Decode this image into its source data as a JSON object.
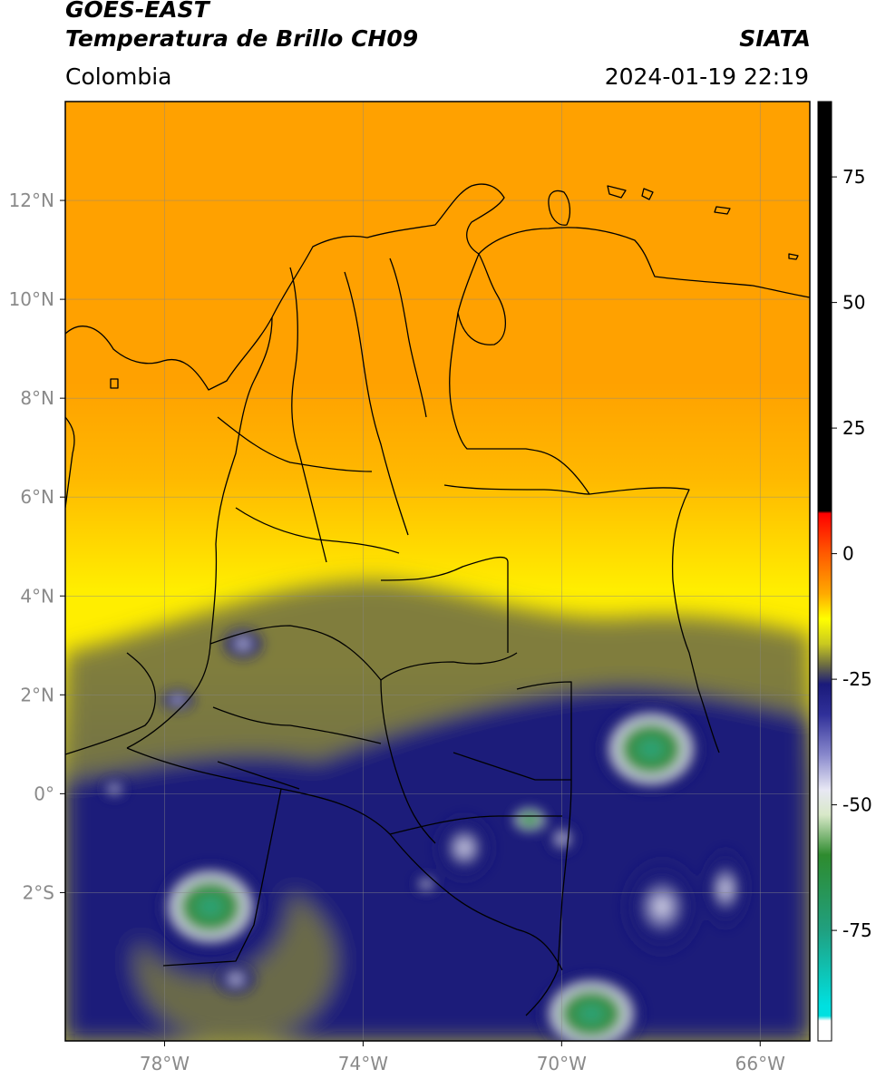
{
  "header": {
    "satellite": "GOES-EAST",
    "product": "Temperatura de Brillo CH09",
    "brand": "SIATA",
    "region": "Colombia",
    "timestamp": "2024-01-19 22:19"
  },
  "map": {
    "lon_range": [
      -80,
      -65
    ],
    "lat_range": [
      -5,
      14
    ],
    "lon_ticks": [
      {
        "value": -78,
        "label": "78°W"
      },
      {
        "value": -74,
        "label": "74°W"
      },
      {
        "value": -70,
        "label": "70°W"
      },
      {
        "value": -66,
        "label": "66°W"
      }
    ],
    "lat_ticks": [
      {
        "value": 12,
        "label": "12°N"
      },
      {
        "value": 10,
        "label": "10°N"
      },
      {
        "value": 8,
        "label": "8°N"
      },
      {
        "value": 6,
        "label": "6°N"
      },
      {
        "value": 4,
        "label": "4°N"
      },
      {
        "value": 2,
        "label": "2°N"
      },
      {
        "value": 0,
        "label": "0°"
      },
      {
        "value": -2,
        "label": "2°S"
      }
    ],
    "grid": true
  },
  "colorbar": {
    "range": [
      -97,
      90
    ],
    "ticks": [
      {
        "value": 75,
        "label": "75"
      },
      {
        "value": 50,
        "label": "50"
      },
      {
        "value": 25,
        "label": "25"
      },
      {
        "value": 0,
        "label": "0"
      },
      {
        "value": -25,
        "label": "-25"
      },
      {
        "value": -50,
        "label": "-50"
      },
      {
        "value": -75,
        "label": "-75"
      }
    ],
    "stops": [
      {
        "value": 90,
        "color": "#000000"
      },
      {
        "value": 8.5,
        "color": "#000000"
      },
      {
        "value": 8,
        "color": "#ff0000"
      },
      {
        "value": 0,
        "color": "#ff5a00"
      },
      {
        "value": -8,
        "color": "#ffaa00"
      },
      {
        "value": -13,
        "color": "#ffff00"
      },
      {
        "value": -18,
        "color": "#c9c820"
      },
      {
        "value": -22,
        "color": "#707040"
      },
      {
        "value": -26,
        "color": "#1a1a7a"
      },
      {
        "value": -32,
        "color": "#303099"
      },
      {
        "value": -40,
        "color": "#8888cc"
      },
      {
        "value": -47,
        "color": "#e8e8f4"
      },
      {
        "value": -52,
        "color": "#d8e8c8"
      },
      {
        "value": -60,
        "color": "#2e8b2e"
      },
      {
        "value": -75,
        "color": "#20a080"
      },
      {
        "value": -90,
        "color": "#00e0e0"
      },
      {
        "value": -92,
        "color": "#00e0e0"
      },
      {
        "value": -93,
        "color": "#ffffff"
      },
      {
        "value": -97,
        "color": "#ffffff"
      }
    ]
  },
  "field_colors": {
    "orange": "#ffa100",
    "orange_light": "#ffb800",
    "yellow": "#ffee00",
    "olive": "#a8a63a",
    "olive_dark": "#6a6a48",
    "navy": "#1b1b7a",
    "white_cloud": "#e4e4f0",
    "green": "#3a8a3a",
    "teal": "#2aa882"
  }
}
